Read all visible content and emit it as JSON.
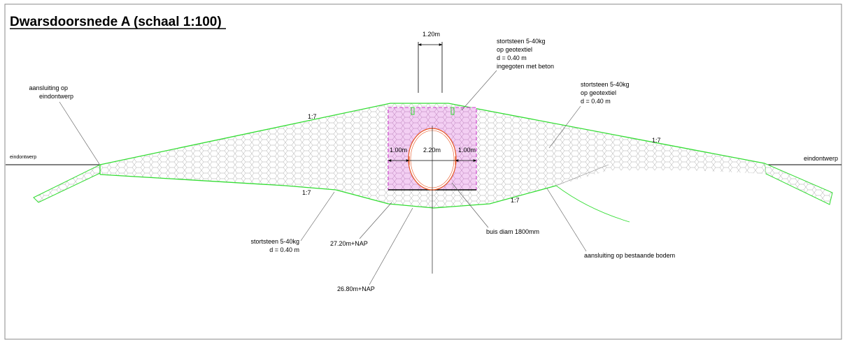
{
  "title": "Dwarsdoorsnede A (schaal 1:100)",
  "labels": {
    "dim_top": "1.20m",
    "stone_top_1": "stortsteen 5-40kg",
    "stone_top_2": "op geotextiel",
    "stone_top_3": "d = 0.40 m",
    "stone_top_4": "ingegoten met beton",
    "stone_right_1": "stortsteen 5-40kg",
    "stone_right_2": "op geotextiel",
    "stone_right_3": "d = 0.40 m",
    "aansluiting_left_1": "aansluiting op",
    "aansluiting_left_2": "eindontwerp",
    "eindontwerp_left": "eindontwerp",
    "eindontwerp_right": "eindontwerp",
    "slope_ul": "1:7",
    "slope_ur": "1:7",
    "slope_ll": "1:7",
    "slope_lr": "1:7",
    "dim_left": "1.00m",
    "dim_center": "2.20m",
    "dim_right": "1.00m",
    "stone_bottom_1": "stortsteen 5-40kg",
    "stone_bottom_2": "d = 0.40 m",
    "level_1": "27.20m+NAP",
    "level_2": "26.80m+NAP",
    "buis": "buis diam 1800mm",
    "aansluiting_bottom": "aansluiting op bestaande bodem"
  },
  "colors": {
    "embankment_outline": "#33dd33",
    "culvert_zone": "#cc33cc",
    "culvert_fill": "#f2cdf2",
    "pipe": "#e85522",
    "pattern": "#9a9a9a",
    "ink": "#000000"
  }
}
